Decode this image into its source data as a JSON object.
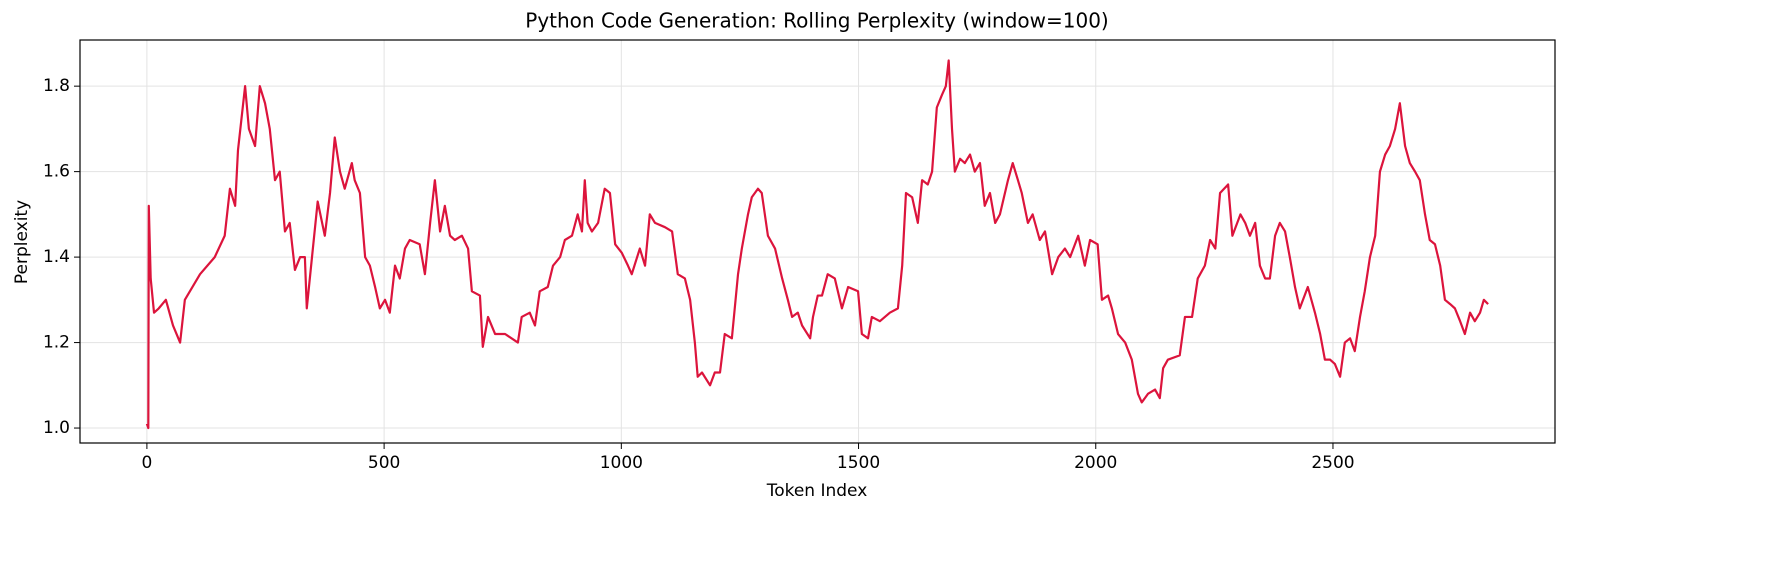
{
  "chart_data": {
    "type": "line",
    "title": "Python Code Generation: Rolling Perplexity (window=100)",
    "x_label": "Token Index",
    "y_label": "Perplexity",
    "x": [
      0,
      3,
      4,
      8,
      15,
      25,
      40,
      55,
      70,
      80,
      112,
      143,
      164,
      175,
      186,
      192,
      207,
      215,
      228,
      238,
      249,
      259,
      270,
      280,
      291,
      301,
      312,
      323,
      333,
      337,
      348,
      360,
      375,
      386,
      396,
      407,
      417,
      432,
      438,
      449,
      460,
      470,
      481,
      491,
      502,
      512,
      523,
      533,
      544,
      554,
      575,
      586,
      597,
      607,
      618,
      628,
      639,
      649,
      664,
      677,
      685,
      702,
      708,
      719,
      734,
      755,
      782,
      790,
      807,
      818,
      828,
      845,
      856,
      871,
      881,
      896,
      908,
      917,
      923,
      929,
      938,
      951,
      965,
      976,
      987,
      1001,
      1014,
      1022,
      1039,
      1050,
      1060,
      1071,
      1092,
      1107,
      1119,
      1134,
      1145,
      1155,
      1161,
      1170,
      1187,
      1197,
      1208,
      1218,
      1233,
      1246,
      1254,
      1267,
      1275,
      1288,
      1296,
      1309,
      1324,
      1339,
      1351,
      1360,
      1372,
      1381,
      1398,
      1404,
      1414,
      1423,
      1435,
      1450,
      1465,
      1478,
      1499,
      1507,
      1520,
      1528,
      1545,
      1566,
      1583,
      1592,
      1600,
      1613,
      1625,
      1634,
      1646,
      1655,
      1665,
      1676,
      1684,
      1690,
      1697,
      1703,
      1714,
      1724,
      1735,
      1745,
      1756,
      1766,
      1777,
      1788,
      1798,
      1815,
      1825,
      1836,
      1844,
      1857,
      1867,
      1882,
      1893,
      1908,
      1921,
      1935,
      1946,
      1963,
      1977,
      1988,
      2004,
      2013,
      2026,
      2034,
      2047,
      2062,
      2076,
      2089,
      2097,
      2110,
      2125,
      2135,
      2142,
      2152,
      2177,
      2188,
      2203,
      2215,
      2230,
      2241,
      2252,
      2262,
      2279,
      2288,
      2305,
      2315,
      2325,
      2336,
      2346,
      2357,
      2367,
      2378,
      2388,
      2399,
      2409,
      2420,
      2430,
      2447,
      2462,
      2473,
      2483,
      2494,
      2504,
      2515,
      2525,
      2536,
      2546,
      2557,
      2567,
      2578,
      2589,
      2599,
      2610,
      2620,
      2631,
      2641,
      2652,
      2662,
      2673,
      2683,
      2694,
      2704,
      2715,
      2726,
      2736,
      2747,
      2757,
      2768,
      2778,
      2789,
      2799,
      2810,
      2818,
      2827
    ],
    "series": [
      {
        "name": "Perplexity",
        "color": "#dc143c",
        "values": [
          1.01,
          1.0,
          1.52,
          1.35,
          1.27,
          1.28,
          1.3,
          1.24,
          1.2,
          1.3,
          1.36,
          1.4,
          1.45,
          1.56,
          1.52,
          1.65,
          1.8,
          1.7,
          1.66,
          1.8,
          1.76,
          1.7,
          1.58,
          1.6,
          1.46,
          1.48,
          1.37,
          1.4,
          1.4,
          1.28,
          1.4,
          1.53,
          1.45,
          1.55,
          1.68,
          1.6,
          1.56,
          1.62,
          1.58,
          1.55,
          1.4,
          1.38,
          1.33,
          1.28,
          1.3,
          1.27,
          1.38,
          1.35,
          1.42,
          1.44,
          1.43,
          1.36,
          1.48,
          1.58,
          1.46,
          1.52,
          1.45,
          1.44,
          1.45,
          1.42,
          1.32,
          1.31,
          1.19,
          1.26,
          1.22,
          1.22,
          1.2,
          1.26,
          1.27,
          1.24,
          1.32,
          1.33,
          1.38,
          1.4,
          1.44,
          1.45,
          1.5,
          1.46,
          1.58,
          1.48,
          1.46,
          1.48,
          1.56,
          1.55,
          1.43,
          1.41,
          1.38,
          1.36,
          1.42,
          1.38,
          1.5,
          1.48,
          1.47,
          1.46,
          1.36,
          1.35,
          1.3,
          1.2,
          1.12,
          1.13,
          1.1,
          1.13,
          1.13,
          1.22,
          1.21,
          1.36,
          1.42,
          1.5,
          1.54,
          1.56,
          1.55,
          1.45,
          1.42,
          1.35,
          1.3,
          1.26,
          1.27,
          1.24,
          1.21,
          1.26,
          1.31,
          1.31,
          1.36,
          1.35,
          1.28,
          1.33,
          1.32,
          1.22,
          1.21,
          1.26,
          1.25,
          1.27,
          1.28,
          1.38,
          1.55,
          1.54,
          1.48,
          1.58,
          1.57,
          1.6,
          1.75,
          1.78,
          1.8,
          1.86,
          1.7,
          1.6,
          1.63,
          1.62,
          1.64,
          1.6,
          1.62,
          1.52,
          1.55,
          1.48,
          1.5,
          1.58,
          1.62,
          1.58,
          1.55,
          1.48,
          1.5,
          1.44,
          1.46,
          1.36,
          1.4,
          1.42,
          1.4,
          1.45,
          1.38,
          1.44,
          1.43,
          1.3,
          1.31,
          1.28,
          1.22,
          1.2,
          1.16,
          1.08,
          1.06,
          1.08,
          1.09,
          1.07,
          1.14,
          1.16,
          1.17,
          1.26,
          1.26,
          1.35,
          1.38,
          1.44,
          1.42,
          1.55,
          1.57,
          1.45,
          1.5,
          1.48,
          1.45,
          1.48,
          1.38,
          1.35,
          1.35,
          1.45,
          1.48,
          1.46,
          1.4,
          1.33,
          1.28,
          1.33,
          1.27,
          1.22,
          1.16,
          1.16,
          1.15,
          1.12,
          1.2,
          1.21,
          1.18,
          1.26,
          1.32,
          1.4,
          1.45,
          1.6,
          1.64,
          1.66,
          1.7,
          1.76,
          1.66,
          1.62,
          1.6,
          1.58,
          1.5,
          1.44,
          1.43,
          1.38,
          1.3,
          1.29,
          1.28,
          1.25,
          1.22,
          1.27,
          1.25,
          1.27,
          1.3,
          1.29
        ]
      }
    ],
    "xlim": [
      -141,
      2968
    ],
    "ylim": [
      0.965,
      1.908
    ],
    "xticks": [
      0,
      500,
      1000,
      1500,
      2000,
      2500
    ],
    "yticks": [
      {
        "value": 1,
        "label": "1.0"
      },
      1.2,
      1.4,
      1.6,
      1.8
    ],
    "grid": true
  }
}
